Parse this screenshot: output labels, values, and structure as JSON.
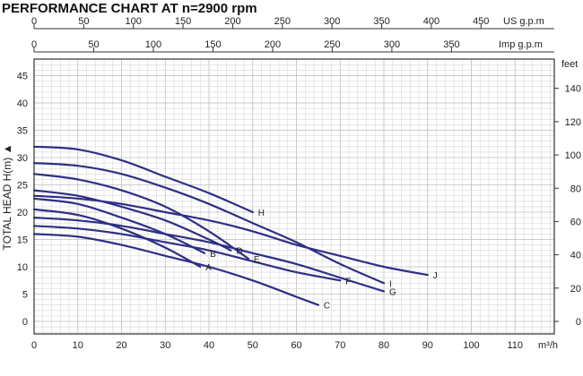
{
  "chart_data": {
    "type": "line",
    "title": "PERFORMANCE CHART AT n=2900 rpm",
    "ylabel": "TOTAL HEAD H(m) ▲",
    "x_unit": "m³/h",
    "y2_unit": "feet",
    "top_axis_1_unit": "US g.p.m",
    "top_axis_2_unit": "Imp g.p.m",
    "xlim": [
      0,
      120
    ],
    "ylim": [
      0,
      48
    ],
    "x_ticks": [
      "0",
      "10",
      "20",
      "30",
      "40",
      "50",
      "60",
      "70",
      "80",
      "90",
      "100",
      "110"
    ],
    "y_ticks": [
      "0",
      "5",
      "10",
      "15",
      "20",
      "25",
      "30",
      "35",
      "40",
      "45"
    ],
    "feet_ticks": [
      "0",
      "20",
      "40",
      "60",
      "80",
      "100",
      "120",
      "140"
    ],
    "us_gpm_ticks": [
      "0",
      "50",
      "100",
      "150",
      "200",
      "250",
      "300",
      "350",
      "400",
      "450"
    ],
    "imp_gpm_ticks": [
      "0",
      "50",
      "100",
      "150",
      "200",
      "250",
      "300",
      "350"
    ],
    "grid": true,
    "series": [
      {
        "name": "A",
        "x": [
          0,
          10,
          20,
          30,
          38
        ],
        "y": [
          20.5,
          19.5,
          17,
          13.5,
          10
        ]
      },
      {
        "name": "B",
        "x": [
          0,
          10,
          20,
          30,
          39
        ],
        "y": [
          22.5,
          21.5,
          19,
          16,
          12.5
        ]
      },
      {
        "name": "C",
        "x": [
          0,
          10,
          20,
          30,
          40,
          50,
          60,
          65
        ],
        "y": [
          16,
          15.5,
          14,
          12,
          10,
          7.5,
          4.5,
          3
        ]
      },
      {
        "name": "D",
        "x": [
          0,
          10,
          20,
          30,
          40,
          45
        ],
        "y": [
          24,
          23,
          21,
          18.5,
          15,
          13
        ]
      },
      {
        "name": "E",
        "x": [
          0,
          10,
          20,
          30,
          40,
          49
        ],
        "y": [
          27,
          26,
          24,
          21,
          16.5,
          11.5
        ]
      },
      {
        "name": "F",
        "x": [
          0,
          10,
          20,
          30,
          40,
          50,
          60,
          70
        ],
        "y": [
          17.5,
          17,
          16,
          14.5,
          13,
          11,
          9,
          7.5
        ]
      },
      {
        "name": "G",
        "x": [
          0,
          10,
          20,
          30,
          40,
          50,
          60,
          70,
          80
        ],
        "y": [
          19,
          18.5,
          17.5,
          16,
          14.5,
          12.5,
          10.5,
          8,
          5.5
        ]
      },
      {
        "name": "H",
        "x": [
          0,
          10,
          20,
          30,
          40,
          50
        ],
        "y": [
          32,
          31.5,
          29.5,
          26.5,
          23.5,
          20
        ]
      },
      {
        "name": "I",
        "x": [
          0,
          10,
          20,
          30,
          40,
          50,
          60,
          70,
          80
        ],
        "y": [
          29,
          28.5,
          27,
          24.5,
          21.5,
          18,
          14.5,
          10.5,
          7
        ]
      },
      {
        "name": "J",
        "x": [
          0,
          10,
          20,
          30,
          40,
          50,
          60,
          70,
          80,
          90
        ],
        "y": [
          23,
          22.5,
          21.5,
          20,
          18.5,
          16.5,
          14,
          12,
          10,
          8.5
        ]
      }
    ]
  }
}
